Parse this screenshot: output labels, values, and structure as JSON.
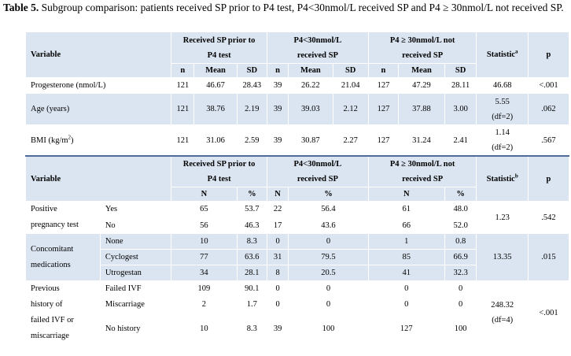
{
  "caption": {
    "label": "Table 5.",
    "text": " Subgroup comparison: patients received SP prior to P4 test, P4<30nmol/L received SP and P4 ≥ 30nmol/L not received SP."
  },
  "top_header": {
    "variable": "Variable",
    "group1_line1": "Received SP prior to",
    "group1_line2": "P4 test",
    "group2_line1": "P4<30nmol/L",
    "group2_line2": "received SP",
    "group3_line1": "P4 ≥ 30nmol/L not",
    "group3_line2": "received SP",
    "statistic": "Statistic",
    "statistic_sup": "a",
    "p": "p",
    "n": "n",
    "mean": "Mean",
    "sd": "SD"
  },
  "top_rows": [
    {
      "label": "Progesterone (nmol/L)",
      "n1": "121",
      "m1": "46.67",
      "sd1": "28.43",
      "n2": "39",
      "m2": "26.22",
      "sd2": "21.04",
      "n3": "127",
      "m3": "47.29",
      "sd3": "28.11",
      "stat1": "46.68",
      "stat2": "",
      "p": "<.001"
    },
    {
      "label": "Age (years)",
      "n1": "121",
      "m1": "38.76",
      "sd1": "2.19",
      "n2": "39",
      "m2": "39.03",
      "sd2": "2.12",
      "n3": "127",
      "m3": "37.88",
      "sd3": "3.00",
      "stat1": "5.55",
      "stat2": "(df=2)",
      "p": ".062"
    },
    {
      "label": "BMI (kg/m",
      "label_sup": "2",
      "label_end": ")",
      "n1": "121",
      "m1": "31.06",
      "sd1": "2.59",
      "n2": "39",
      "m2": "30.87",
      "sd2": "2.27",
      "n3": "127",
      "m3": "31.24",
      "sd3": "2.41",
      "stat1": "1.14",
      "stat2": "(df=2)",
      "p": ".567"
    }
  ],
  "bottom_header": {
    "variable": "Variable",
    "group1_line1": "Received SP prior to",
    "group1_line2": "P4 test",
    "group2_line1": "P4<30nmol/L",
    "group2_line2": "received SP",
    "group3_line1": "P4 ≥ 30nmol/L not",
    "group3_line2": "received SP",
    "statistic": "Statistic",
    "statistic_sup": "b",
    "p": "p",
    "N": "N",
    "pct": "%"
  },
  "pregnancy": {
    "label_line1": "Positive",
    "label_line2": "pregnancy test",
    "rows": [
      {
        "sub": "Yes",
        "n1": "65",
        "p1": "53.7",
        "n2": "22",
        "p2": "56.4",
        "n3": "61",
        "p3": "48.0"
      },
      {
        "sub": "No",
        "n1": "56",
        "p1": "46.3",
        "n2": "17",
        "p2": "43.6",
        "n3": "66",
        "p3": "52.0"
      }
    ],
    "stat": "1.23",
    "p": ".542"
  },
  "medications": {
    "label_line1": "Concomitant",
    "label_line2": "medications",
    "rows": [
      {
        "sub": "None",
        "n1": "10",
        "p1": "8.3",
        "n2": "0",
        "p2": "0",
        "n3": "1",
        "p3": "0.8"
      },
      {
        "sub": "Cyclogest",
        "n1": "77",
        "p1": "63.6",
        "n2": "31",
        "p2": "79.5",
        "n3": "85",
        "p3": "66.9"
      },
      {
        "sub": "Utrogestan",
        "n1": "34",
        "p1": "28.1",
        "n2": "8",
        "p2": "20.5",
        "n3": "41",
        "p3": "32.3"
      }
    ],
    "stat": "13.35",
    "p": ".015"
  },
  "history": {
    "label_line1": "Previous",
    "label_line2": "history of",
    "label_line3": "failed IVF or",
    "label_line4": "miscarriage",
    "rows": [
      {
        "sub": "Failed IVF",
        "n1": "109",
        "p1": "90.1",
        "n2": "0",
        "p2": "0",
        "n3": "0",
        "p3": "0"
      },
      {
        "sub": "Miscarriage",
        "n1": "2",
        "p1": "1.7",
        "n2": "0",
        "p2": "0",
        "n3": "0",
        "p3": "0"
      },
      {
        "sub": "No history",
        "n1": "10",
        "p1": "8.3",
        "n2": "39",
        "p2": "100",
        "n3": "127",
        "p3": "100"
      }
    ],
    "stat1": "248.32",
    "stat2": "(df=4)",
    "p": "<.001"
  }
}
